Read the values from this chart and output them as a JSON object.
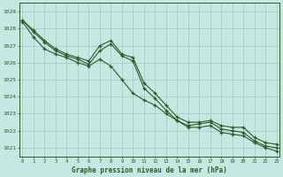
{
  "xlabel": "Graphe pression niveau de la mer (hPa)",
  "bg_color": "#c5e8e0",
  "grid_color": "#a8d0c8",
  "line_color": "#2d5a2d",
  "ylim": [
    1020.5,
    1029.5
  ],
  "xlim": [
    -0.3,
    23.3
  ],
  "yticks": [
    1021,
    1022,
    1023,
    1024,
    1025,
    1026,
    1027,
    1028,
    1029
  ],
  "xticks": [
    0,
    1,
    2,
    3,
    4,
    5,
    6,
    7,
    8,
    9,
    10,
    11,
    12,
    13,
    14,
    15,
    16,
    17,
    18,
    19,
    20,
    21,
    22,
    23
  ],
  "series1": [
    1028.5,
    1027.9,
    1027.3,
    1026.8,
    1026.5,
    1026.3,
    1026.1,
    1027.0,
    1027.3,
    1026.5,
    1026.3,
    1024.8,
    1024.2,
    1023.5,
    1022.8,
    1022.5,
    1022.5,
    1022.6,
    1022.3,
    1022.2,
    1022.2,
    1021.6,
    1021.3,
    1021.2
  ],
  "series2": [
    1028.5,
    1027.8,
    1027.2,
    1026.7,
    1026.4,
    1026.2,
    1025.9,
    1026.7,
    1027.1,
    1026.4,
    1026.1,
    1024.5,
    1023.9,
    1023.2,
    1022.6,
    1022.3,
    1022.4,
    1022.5,
    1022.1,
    1022.0,
    1021.9,
    1021.4,
    1021.1,
    1021.0
  ],
  "series3": [
    1028.4,
    1027.5,
    1026.8,
    1026.5,
    1026.3,
    1026.0,
    1025.8,
    1026.2,
    1025.8,
    1025.0,
    1024.2,
    1023.8,
    1023.5,
    1023.0,
    1022.6,
    1022.2,
    1022.2,
    1022.3,
    1021.9,
    1021.8,
    1021.7,
    1021.3,
    1021.0,
    1020.8
  ]
}
